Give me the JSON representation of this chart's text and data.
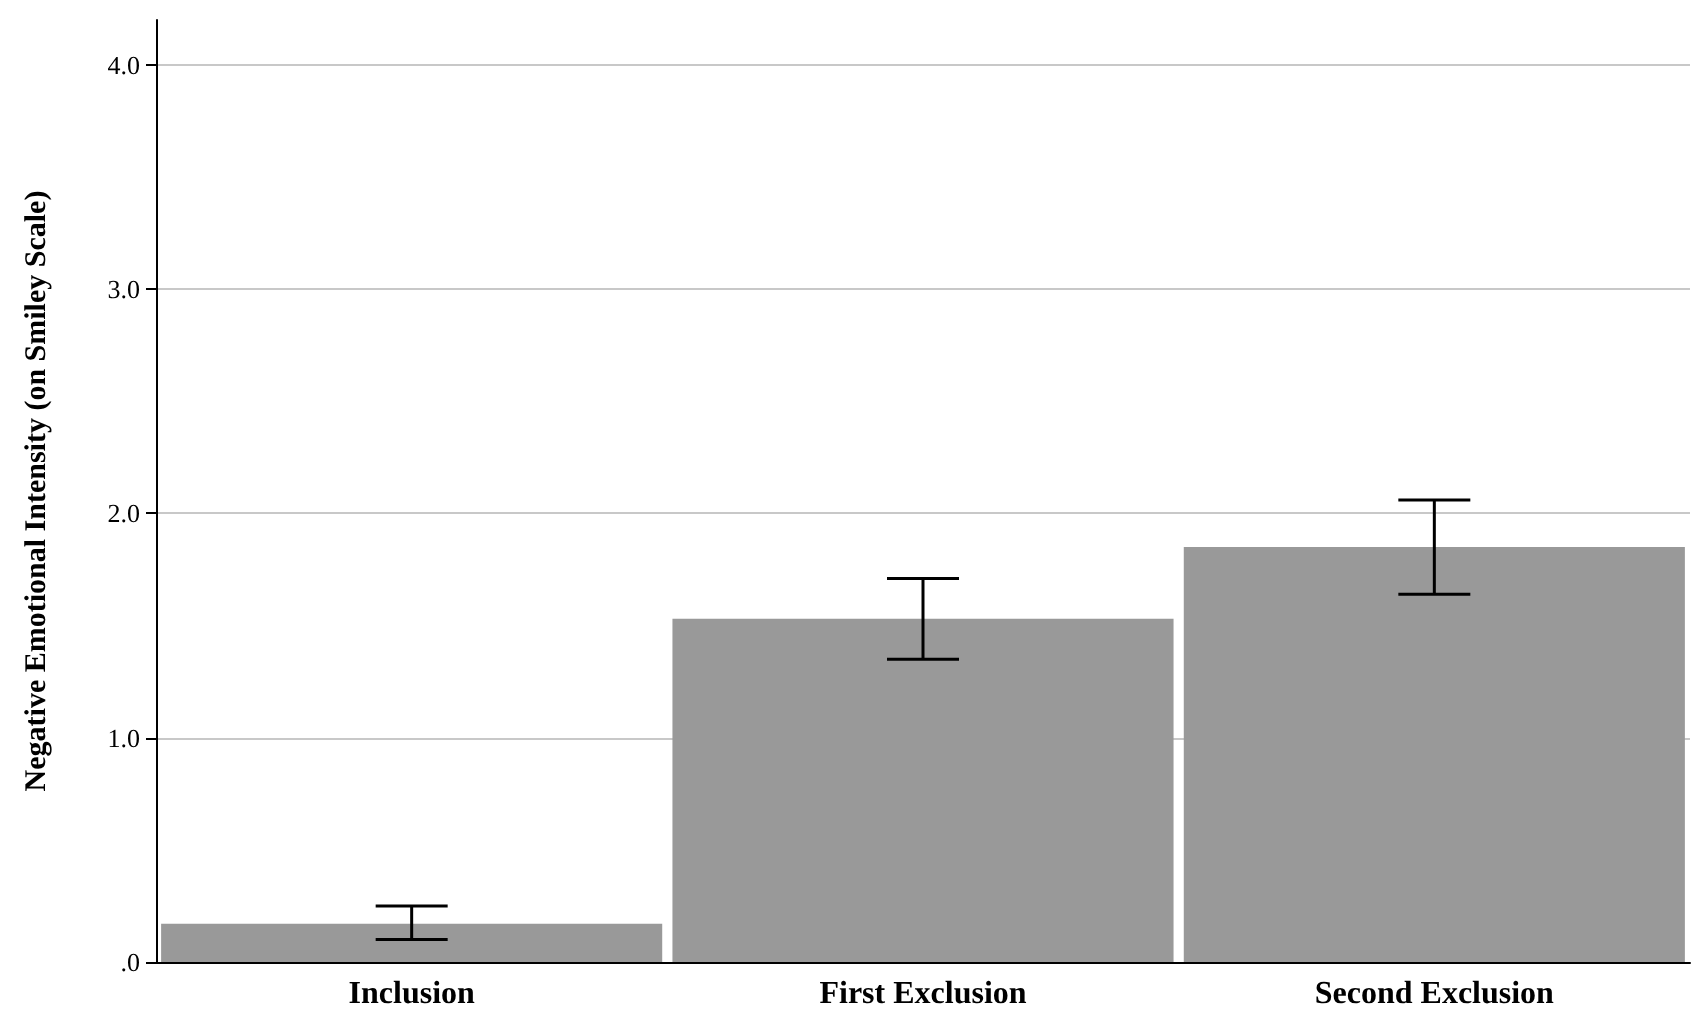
{
  "chart_data": {
    "type": "bar",
    "ylabel": "Negative Emotional Intensity (on Smiley Scale)",
    "categories": [
      "Inclusion",
      "First Exclusion",
      "Second Exclusion"
    ],
    "values": [
      0.17,
      1.53,
      1.85
    ],
    "color": "#999999",
    "errors": [
      [
        0.1,
        0.25
      ],
      [
        1.35,
        1.71
      ],
      [
        1.64,
        2.06
      ]
    ],
    "ylim": [
      0,
      4.2
    ],
    "yticks": [
      {
        "value": 0,
        "label": ".0"
      },
      {
        "value": 1,
        "label": "1.0"
      },
      {
        "value": 2,
        "label": "2.0"
      },
      {
        "value": 3,
        "label": "3.0"
      },
      {
        "value": 4,
        "label": "4.0"
      }
    ],
    "grid": "y"
  }
}
